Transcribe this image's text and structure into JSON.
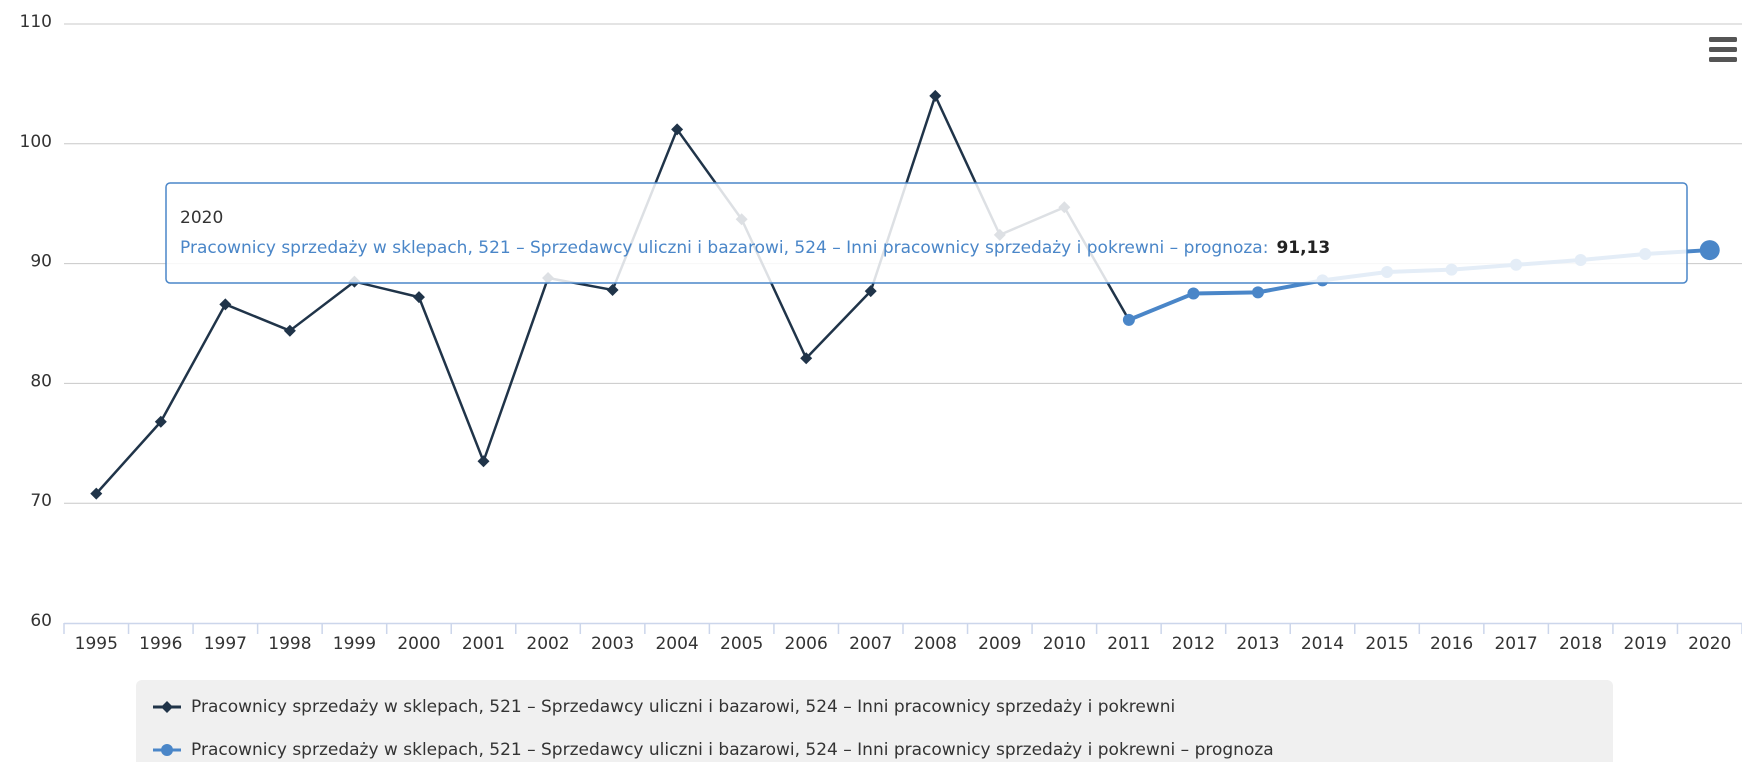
{
  "chart_data": {
    "type": "line",
    "categories": [
      "1995",
      "1996",
      "1997",
      "1998",
      "1999",
      "2000",
      "2001",
      "2002",
      "2003",
      "2004",
      "2005",
      "2006",
      "2007",
      "2008",
      "2009",
      "2010",
      "2011",
      "2012",
      "2013",
      "2014",
      "2015",
      "2016",
      "2017",
      "2018",
      "2019",
      "2020"
    ],
    "series": [
      {
        "name": "Pracownicy sprzedaży w sklepach, 521 – Sprzedawcy uliczni i bazarowi, 524 – Inni pracownicy sprzedaży i pokrewni",
        "color": "#203449",
        "marker": "diamond",
        "values": [
          70.8,
          76.8,
          86.6,
          84.4,
          88.5,
          87.2,
          73.5,
          88.8,
          87.8,
          101.2,
          93.7,
          82.1,
          87.7,
          104.0,
          92.4,
          94.7,
          85.3,
          null,
          null,
          null,
          null,
          null,
          null,
          null,
          null,
          null
        ]
      },
      {
        "name": "Pracownicy sprzedaży w sklepach, 521 – Sprzedawcy uliczni i bazarowi, 524 – Inni pracownicy sprzedaży i pokrewni – prognoza",
        "color": "#4a86c8",
        "marker": "circle",
        "values": [
          null,
          null,
          null,
          null,
          null,
          null,
          null,
          null,
          null,
          null,
          null,
          null,
          null,
          null,
          null,
          null,
          85.3,
          87.5,
          87.6,
          88.6,
          89.3,
          89.5,
          89.9,
          90.3,
          90.8,
          91.13
        ],
        "value_labels": [
          null,
          null,
          null,
          null,
          null,
          null,
          null,
          null,
          null,
          null,
          null,
          null,
          null,
          null,
          null,
          null,
          null,
          null,
          null,
          null,
          null,
          null,
          null,
          null,
          null,
          "91,13"
        ]
      }
    ],
    "ylim": [
      60,
      110
    ],
    "yticks": [
      60,
      70,
      80,
      90,
      100,
      110
    ],
    "grid": true,
    "legend": "bottom",
    "tooltip": {
      "index": 25,
      "series": 1,
      "label": "Pracownicy sprzedaży w sklepach, 521 – Sprzedawcy uliczni i bazarowi, 524 – Inni pracownicy sprzedaży i pokrewni – prognoza:"
    }
  }
}
